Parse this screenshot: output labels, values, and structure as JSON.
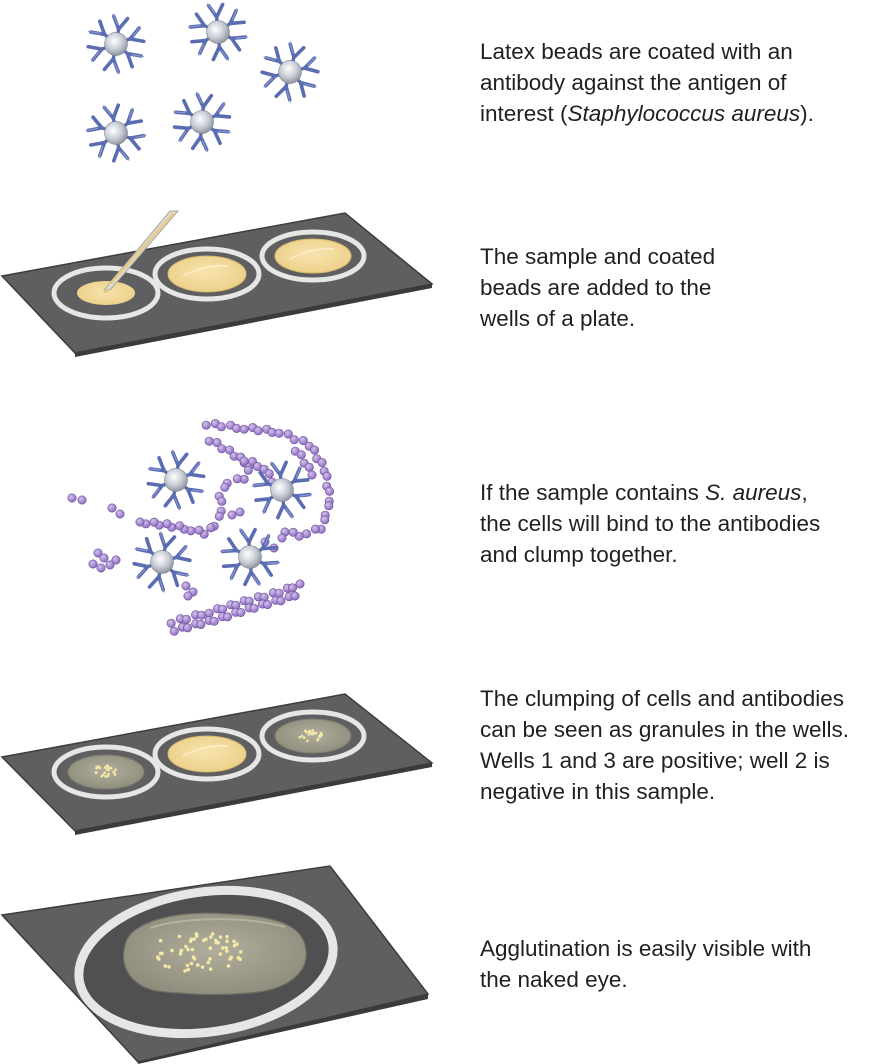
{
  "steps": [
    {
      "lines": [
        {
          "parts": [
            {
              "t": "Latex beads are coated with an"
            }
          ]
        },
        {
          "parts": [
            {
              "t": "antibody against the antigen of"
            }
          ]
        },
        {
          "parts": [
            {
              "t": "interest ("
            },
            {
              "t": "Staphylococcus aureus",
              "i": true
            },
            {
              "t": ")."
            }
          ]
        }
      ]
    },
    {
      "lines": [
        {
          "parts": [
            {
              "t": "The sample and coated"
            }
          ]
        },
        {
          "parts": [
            {
              "t": "beads are added to the"
            }
          ]
        },
        {
          "parts": [
            {
              "t": "wells of a plate."
            }
          ]
        }
      ]
    },
    {
      "lines": [
        {
          "parts": [
            {
              "t": "If the sample contains "
            },
            {
              "t": "S. aureus",
              "i": true
            },
            {
              "t": ","
            }
          ]
        },
        {
          "parts": [
            {
              "t": "the cells will bind to the antibodies"
            }
          ]
        },
        {
          "parts": [
            {
              "t": "and clump together."
            }
          ]
        }
      ]
    },
    {
      "lines": [
        {
          "parts": [
            {
              "t": "The clumping of cells and antibodies"
            }
          ]
        },
        {
          "parts": [
            {
              "t": "can be seen as granules in the wells."
            }
          ]
        },
        {
          "parts": [
            {
              "t": "Wells 1 and 3 are positive; well 2 is"
            }
          ]
        },
        {
          "parts": [
            {
              "t": "negative in this sample."
            }
          ]
        }
      ]
    },
    {
      "lines": [
        {
          "parts": [
            {
              "t": "Agglutination is easily visible with"
            }
          ]
        },
        {
          "parts": [
            {
              "t": "the naked eye."
            }
          ]
        }
      ]
    }
  ],
  "colors": {
    "plate": "#5f5f62",
    "plate_edge": "#3c3c3e",
    "well_ring": "#e6e6e4",
    "liquid": "#f1d89c",
    "clumped": "#9c9a88",
    "antibody": "#5868ae",
    "bead": "#c7ccd3",
    "cell": "#9a78c6",
    "granule": "#f5e7a6"
  }
}
